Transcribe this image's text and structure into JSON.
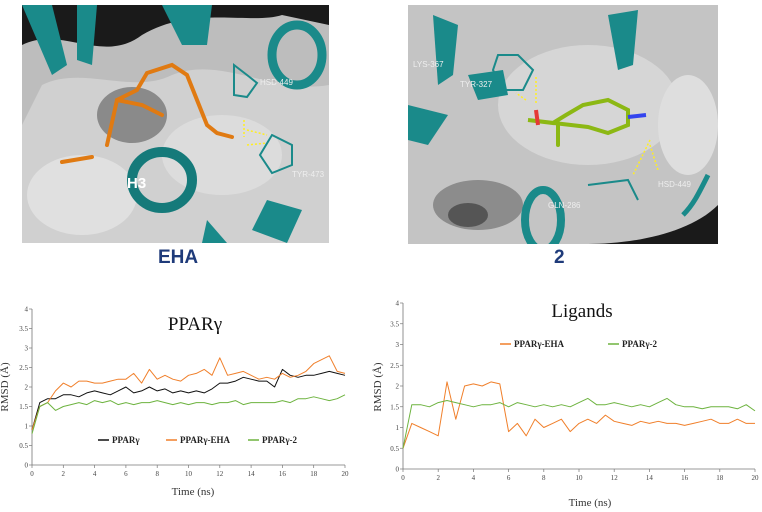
{
  "panels": [
    {
      "caption": "EHA",
      "helix_label": "H3",
      "residues": [
        "HSD-449",
        "TYR-473"
      ]
    },
    {
      "caption": "2",
      "residues": [
        "LYS-367",
        "TYR-327",
        "GLN-286",
        "HSD-449"
      ]
    }
  ],
  "colors": {
    "black": "#111111",
    "orange": "#f07f2a",
    "green": "#6db33f",
    "caption": "#1f3b7a",
    "teal": "#1a8a8a"
  },
  "chart_data": [
    {
      "type": "line",
      "title": "PPARγ",
      "xlabel": "Time (ns)",
      "ylabel": "RMSD (Å)",
      "xlim": [
        0,
        20
      ],
      "ylim": [
        0,
        4
      ],
      "xticks": [
        0,
        2,
        4,
        6,
        8,
        10,
        12,
        14,
        16,
        18,
        20
      ],
      "yticks": [
        0,
        0.5,
        1,
        1.5,
        2,
        2.5,
        3,
        3.5,
        4
      ],
      "legend": "center",
      "x": [
        0,
        0.5,
        1,
        1.5,
        2,
        2.5,
        3,
        3.5,
        4,
        4.5,
        5,
        5.5,
        6,
        6.5,
        7,
        7.5,
        8,
        8.5,
        9,
        9.5,
        10,
        10.5,
        11,
        11.5,
        12,
        12.5,
        13,
        13.5,
        14,
        14.5,
        15,
        15.5,
        16,
        16.5,
        17,
        17.5,
        18,
        18.5,
        19,
        19.5,
        20
      ],
      "series": [
        {
          "name": "PPARγ",
          "color": "#111111",
          "values": [
            0.9,
            1.6,
            1.7,
            1.7,
            1.8,
            1.8,
            1.75,
            1.85,
            1.9,
            1.85,
            1.8,
            1.9,
            2.0,
            1.85,
            1.9,
            2.0,
            1.9,
            1.95,
            1.85,
            1.9,
            1.85,
            1.9,
            1.85,
            1.95,
            2.1,
            2.1,
            2.15,
            2.25,
            2.2,
            2.15,
            2.15,
            2.0,
            2.45,
            2.3,
            2.25,
            2.3,
            2.3,
            2.35,
            2.4,
            2.35,
            2.3
          ]
        },
        {
          "name": "PPARγ-EHA",
          "color": "#f07f2a",
          "values": [
            0.9,
            1.5,
            1.6,
            1.9,
            2.1,
            2.0,
            2.15,
            2.15,
            2.1,
            2.1,
            2.15,
            2.2,
            2.2,
            2.35,
            2.1,
            2.45,
            2.2,
            2.3,
            2.2,
            2.15,
            2.3,
            2.35,
            2.45,
            2.3,
            2.75,
            2.3,
            2.35,
            2.4,
            2.3,
            2.2,
            2.25,
            2.2,
            2.35,
            2.25,
            2.3,
            2.4,
            2.6,
            2.7,
            2.8,
            2.4,
            2.35
          ]
        },
        {
          "name": "PPARγ-2",
          "color": "#6db33f",
          "values": [
            0.8,
            1.5,
            1.6,
            1.4,
            1.5,
            1.55,
            1.6,
            1.55,
            1.65,
            1.6,
            1.65,
            1.55,
            1.6,
            1.55,
            1.6,
            1.6,
            1.65,
            1.6,
            1.55,
            1.6,
            1.55,
            1.6,
            1.6,
            1.55,
            1.6,
            1.6,
            1.65,
            1.55,
            1.6,
            1.6,
            1.6,
            1.6,
            1.65,
            1.6,
            1.7,
            1.7,
            1.75,
            1.7,
            1.65,
            1.7,
            1.8
          ]
        }
      ]
    },
    {
      "type": "line",
      "title": "Ligands",
      "xlabel": "Time (ns)",
      "ylabel": "RMSD (Å)",
      "xlim": [
        0,
        20
      ],
      "ylim": [
        0,
        4
      ],
      "xticks": [
        0,
        2,
        4,
        6,
        8,
        10,
        12,
        14,
        16,
        18,
        20
      ],
      "yticks": [
        0,
        0.5,
        1,
        1.5,
        2,
        2.5,
        3,
        3.5,
        4
      ],
      "legend": "top",
      "x": [
        0,
        0.5,
        1,
        1.5,
        2,
        2.5,
        3,
        3.5,
        4,
        4.5,
        5,
        5.5,
        6,
        6.5,
        7,
        7.5,
        8,
        8.5,
        9,
        9.5,
        10,
        10.5,
        11,
        11.5,
        12,
        12.5,
        13,
        13.5,
        14,
        14.5,
        15,
        15.5,
        16,
        16.5,
        17,
        17.5,
        18,
        18.5,
        19,
        19.5,
        20
      ],
      "series": [
        {
          "name": "PPARγ-EHA",
          "color": "#f07f2a",
          "values": [
            0.5,
            1.1,
            1.0,
            0.9,
            0.8,
            2.1,
            1.2,
            2.0,
            2.05,
            2.0,
            2.1,
            2.05,
            0.9,
            1.1,
            0.8,
            1.2,
            1.0,
            1.1,
            1.2,
            0.9,
            1.1,
            1.2,
            1.1,
            1.3,
            1.15,
            1.1,
            1.05,
            1.15,
            1.1,
            1.15,
            1.1,
            1.1,
            1.05,
            1.1,
            1.15,
            1.2,
            1.1,
            1.1,
            1.2,
            1.1,
            1.1
          ]
        },
        {
          "name": "PPARγ-2",
          "color": "#6db33f",
          "values": [
            0.5,
            1.55,
            1.55,
            1.5,
            1.6,
            1.65,
            1.6,
            1.55,
            1.5,
            1.55,
            1.55,
            1.6,
            1.5,
            1.6,
            1.55,
            1.5,
            1.55,
            1.5,
            1.55,
            1.5,
            1.6,
            1.7,
            1.55,
            1.55,
            1.6,
            1.55,
            1.5,
            1.55,
            1.5,
            1.6,
            1.7,
            1.55,
            1.5,
            1.5,
            1.45,
            1.5,
            1.5,
            1.5,
            1.45,
            1.55,
            1.4
          ]
        }
      ]
    }
  ]
}
